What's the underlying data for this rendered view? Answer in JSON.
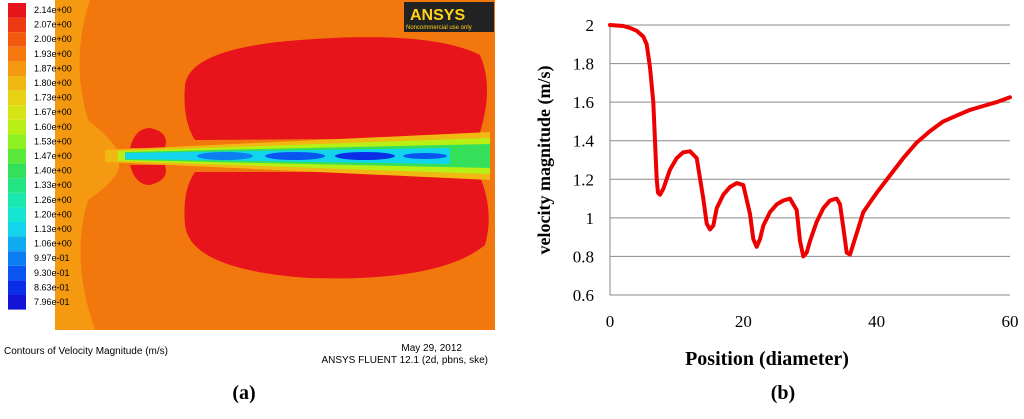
{
  "panel_a": {
    "legend_values": [
      "2.14e+00",
      "2.07e+00",
      "2.00e+00",
      "1.93e+00",
      "1.87e+00",
      "1.80e+00",
      "1.73e+00",
      "1.67e+00",
      "1.60e+00",
      "1.53e+00",
      "1.47e+00",
      "1.40e+00",
      "1.33e+00",
      "1.26e+00",
      "1.20e+00",
      "1.13e+00",
      "1.06e+00",
      "9.97e-01",
      "9.30e-01",
      "8.63e-01",
      "7.96e-01"
    ],
    "legend_colors": [
      "#e8141c",
      "#ee3a12",
      "#f25a10",
      "#f6780e",
      "#f59a10",
      "#f0b812",
      "#e8d214",
      "#d6e414",
      "#b8f016",
      "#8ef222",
      "#5ae83a",
      "#34e05a",
      "#22e482",
      "#1ae8ae",
      "#14e6d2",
      "#12d4ec",
      "#10aaf0",
      "#0c7ef2",
      "#0a54f0",
      "#0a2ee8",
      "#1414d6"
    ],
    "ansys_logo": "ANSYS",
    "ansys_sub": "Noncommercial use only",
    "caption_left": "Contours of Velocity Magnitude (m/s)",
    "caption_date": "May 29, 2012",
    "caption_solver": "ANSYS FLUENT 12.1 (2d, pbns, ske)",
    "label": "(a)"
  },
  "panel_b": {
    "label": "(b)"
  },
  "chart_data": {
    "type": "line",
    "title": "",
    "xlabel": "Position (diameter)",
    "ylabel": "velocity magnitude (m/s)",
    "xlim": [
      0,
      60
    ],
    "ylim": [
      0.6,
      2
    ],
    "xticks": [
      0,
      20,
      40,
      60
    ],
    "yticks": [
      0.6,
      0.8,
      1,
      1.2,
      1.4,
      1.6,
      1.8,
      2
    ],
    "grid": "horizontal",
    "color": "#ee0000",
    "series": [
      {
        "x": [
          0,
          2,
          3,
          4,
          5,
          5.5,
          6,
          6.5,
          7,
          7.2,
          7.5,
          8,
          9,
          10,
          11,
          12,
          13,
          14,
          14.5,
          15,
          15.5,
          16,
          17,
          18,
          19,
          20,
          21,
          21.5,
          22,
          22.5,
          23,
          24,
          25,
          26,
          27,
          28,
          28.5,
          29,
          29.5,
          30,
          31,
          32,
          33,
          34,
          34.5,
          35,
          35.5,
          36,
          37,
          38,
          39,
          40,
          42,
          44,
          46,
          48,
          50,
          52,
          54,
          56,
          58,
          60
        ],
        "y": [
          2.0,
          1.995,
          1.985,
          1.97,
          1.94,
          1.9,
          1.78,
          1.6,
          1.2,
          1.13,
          1.12,
          1.15,
          1.25,
          1.31,
          1.34,
          1.345,
          1.31,
          1.1,
          0.97,
          0.94,
          0.96,
          1.05,
          1.12,
          1.16,
          1.18,
          1.17,
          1.02,
          0.89,
          0.85,
          0.89,
          0.96,
          1.03,
          1.07,
          1.09,
          1.1,
          1.04,
          0.88,
          0.8,
          0.82,
          0.88,
          0.98,
          1.05,
          1.09,
          1.1,
          1.07,
          0.95,
          0.82,
          0.81,
          0.92,
          1.03,
          1.08,
          1.13,
          1.22,
          1.31,
          1.39,
          1.45,
          1.5,
          1.53,
          1.56,
          1.58,
          1.6,
          1.625
        ]
      }
    ]
  }
}
